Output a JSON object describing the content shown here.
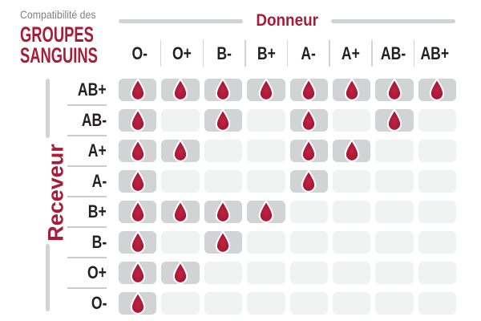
{
  "title": {
    "subtitle": "Compatibilité des",
    "line1": "GROUPES",
    "line2": "SANGUINS"
  },
  "axes": {
    "donor_label": "Donneur",
    "receiver_label": "Receveur"
  },
  "icons": {
    "compatible_marker": "blood-drop-icon"
  },
  "colors": {
    "brand_red": "#a91c38",
    "drop_red_light": "#c02343",
    "drop_red_dark": "#9a122d",
    "cell_filled_gray": "#d1d3d4",
    "cell_empty_gray": "#f1f2f2",
    "bar_gray": "#d1d3d4",
    "separator_gray": "#c9cbcc",
    "header_text": "#231f20",
    "subtitle_gray": "#808285"
  },
  "chart_data": {
    "type": "table",
    "title": "Compatibilité des GROUPES SANGUINS",
    "x_axis_label": "Donneur",
    "y_axis_label": "Receveur",
    "columns": [
      "O-",
      "O+",
      "B-",
      "B+",
      "A-",
      "A+",
      "AB-",
      "AB+"
    ],
    "rows": [
      {
        "label": "AB+",
        "compatible_with": [
          1,
          1,
          1,
          1,
          1,
          1,
          1,
          1
        ]
      },
      {
        "label": "AB-",
        "compatible_with": [
          1,
          0,
          1,
          0,
          1,
          0,
          1,
          0
        ]
      },
      {
        "label": "A+",
        "compatible_with": [
          1,
          1,
          0,
          0,
          1,
          1,
          0,
          0
        ]
      },
      {
        "label": "A-",
        "compatible_with": [
          1,
          0,
          0,
          0,
          1,
          0,
          0,
          0
        ]
      },
      {
        "label": "B+",
        "compatible_with": [
          1,
          1,
          1,
          1,
          0,
          0,
          0,
          0
        ]
      },
      {
        "label": "B-",
        "compatible_with": [
          1,
          0,
          1,
          0,
          0,
          0,
          0,
          0
        ]
      },
      {
        "label": "O+",
        "compatible_with": [
          1,
          1,
          0,
          0,
          0,
          0,
          0,
          0
        ]
      },
      {
        "label": "O-",
        "compatible_with": [
          1,
          0,
          0,
          0,
          0,
          0,
          0,
          0
        ]
      }
    ],
    "cell_true_marker": "blood-drop",
    "cell_false_marker": "empty"
  }
}
